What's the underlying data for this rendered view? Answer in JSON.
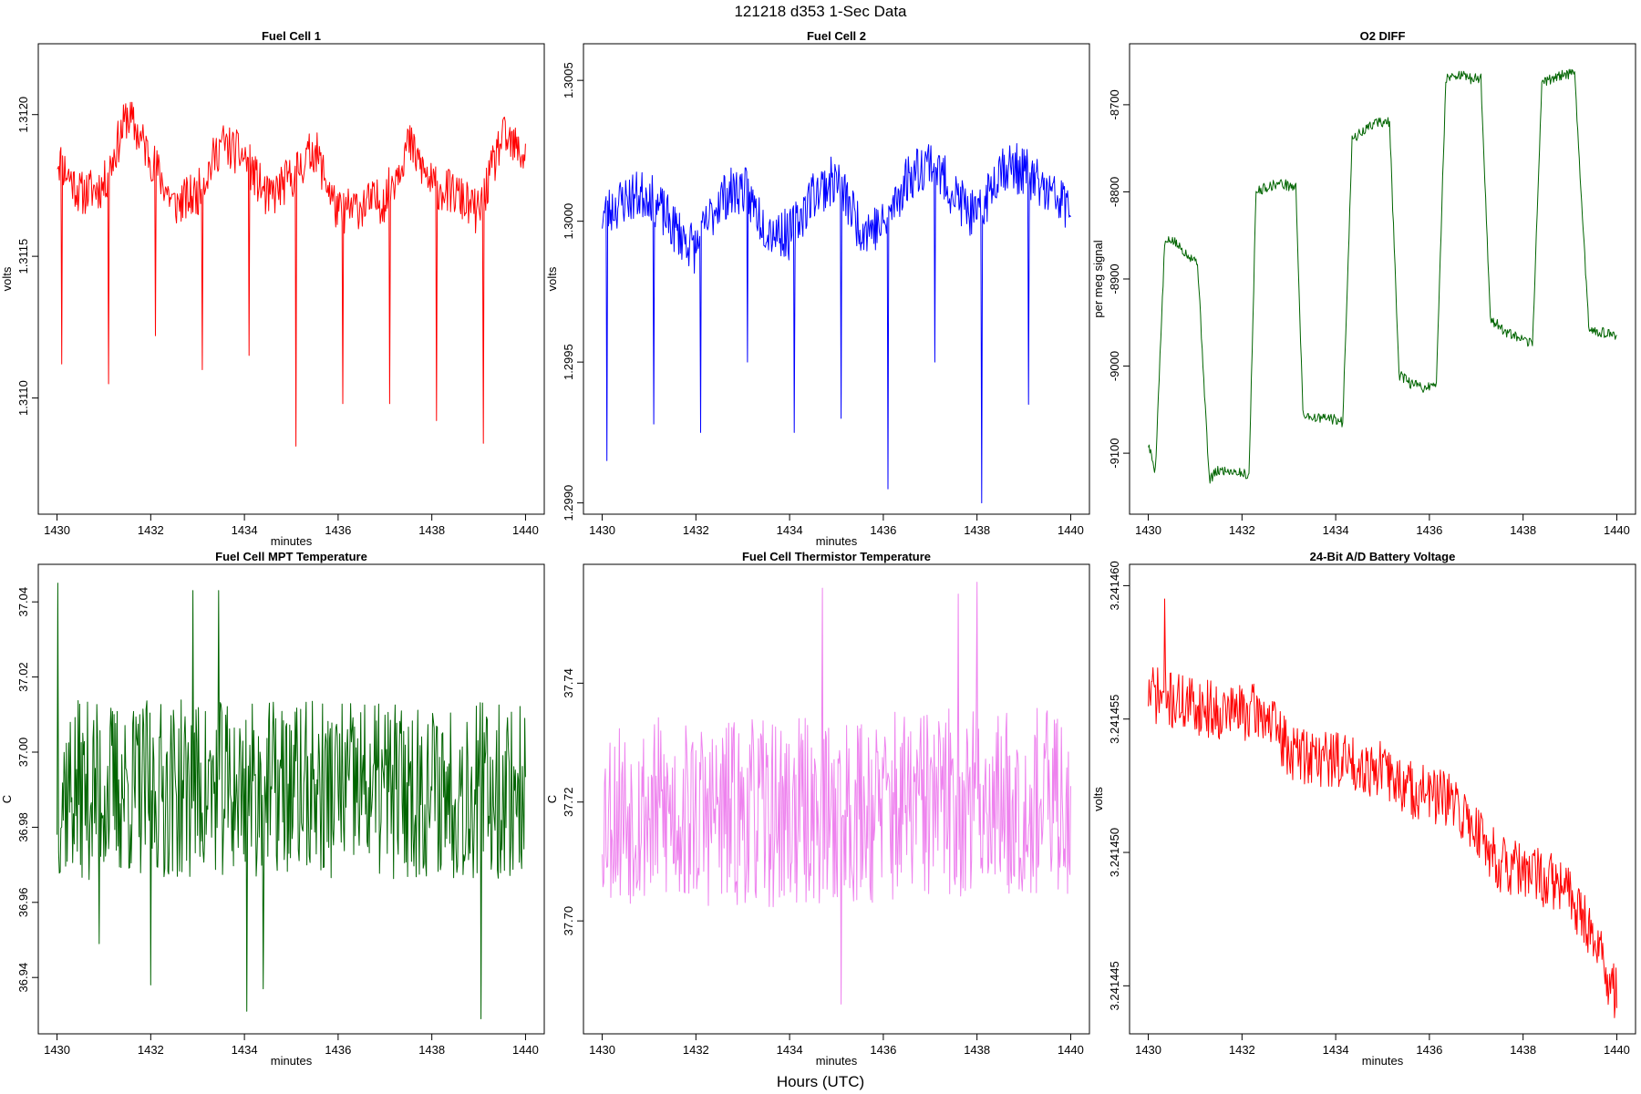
{
  "title": "121218   d353   1-Sec Data",
  "footer_label": "Hours (UTC)",
  "chart_data": [
    {
      "type": "line",
      "title": "Fuel Cell 1",
      "xlabel": "minutes",
      "ylabel": "volts",
      "color": "#ff0000",
      "xlim": [
        1429.6,
        1440.4
      ],
      "ylim": [
        1.31059,
        1.31225
      ],
      "xticks": [
        "1430",
        "1432",
        "1434",
        "1436",
        "1438",
        "1440"
      ],
      "yticks": [
        "1.3110",
        "1.3115",
        "1.3120"
      ],
      "series": [
        {
          "name": "Fuel Cell 1",
          "x": [
            1430,
            1430.5,
            1431,
            1431.5,
            1432,
            1432.5,
            1433,
            1433.5,
            1434,
            1434.5,
            1435,
            1435.5,
            1436,
            1436.5,
            1437,
            1437.5,
            1438,
            1438.5,
            1439,
            1439.5,
            1440
          ],
          "y": [
            1.31185,
            1.31172,
            1.31175,
            1.312,
            1.31185,
            1.31168,
            1.31172,
            1.3119,
            1.31185,
            1.3117,
            1.31178,
            1.31188,
            1.31165,
            1.31168,
            1.3117,
            1.3119,
            1.31175,
            1.31172,
            1.31165,
            1.31192,
            1.31185
          ],
          "spikes": [
            {
              "x": 1430.1,
              "y": 1.31112
            },
            {
              "x": 1431.1,
              "y": 1.31105
            },
            {
              "x": 1432.1,
              "y": 1.31122
            },
            {
              "x": 1433.1,
              "y": 1.3111
            },
            {
              "x": 1434.1,
              "y": 1.31115
            },
            {
              "x": 1435.1,
              "y": 1.31083
            },
            {
              "x": 1436.1,
              "y": 1.31098
            },
            {
              "x": 1437.1,
              "y": 1.31098
            },
            {
              "x": 1438.1,
              "y": 1.31092
            },
            {
              "x": 1439.1,
              "y": 1.31084
            }
          ],
          "noise": 8e-05,
          "seed": 11
        }
      ]
    },
    {
      "type": "line",
      "title": "Fuel Cell 2",
      "xlabel": "minutes",
      "ylabel": "volts",
      "color": "#0000ff",
      "xlim": [
        1429.6,
        1440.4
      ],
      "ylim": [
        1.29896,
        1.30063
      ],
      "xticks": [
        "1430",
        "1432",
        "1434",
        "1436",
        "1438",
        "1440"
      ],
      "yticks": [
        "1.2990",
        "1.2995",
        "1.3000",
        "1.3005"
      ],
      "series": [
        {
          "name": "Fuel Cell 2",
          "x": [
            1430,
            1430.5,
            1431,
            1431.5,
            1432,
            1432.5,
            1433,
            1433.5,
            1434,
            1434.5,
            1435,
            1435.5,
            1436,
            1436.5,
            1437,
            1437.5,
            1438,
            1438.5,
            1439,
            1439.5,
            1440
          ],
          "y": [
            1.30002,
            1.30008,
            1.3001,
            1.29998,
            1.2999,
            1.30008,
            1.30012,
            1.29998,
            1.29995,
            1.3001,
            1.30015,
            1.29998,
            1.29998,
            1.30015,
            1.30022,
            1.3001,
            1.3,
            1.3002,
            1.30018,
            1.3001,
            1.30005
          ],
          "spikes": [
            {
              "x": 1430.1,
              "y": 1.29915
            },
            {
              "x": 1431.1,
              "y": 1.29928
            },
            {
              "x": 1432.1,
              "y": 1.29925
            },
            {
              "x": 1433.1,
              "y": 1.2995
            },
            {
              "x": 1434.1,
              "y": 1.29925
            },
            {
              "x": 1435.1,
              "y": 1.2993
            },
            {
              "x": 1436.1,
              "y": 1.29905
            },
            {
              "x": 1437.1,
              "y": 1.2995
            },
            {
              "x": 1438.1,
              "y": 1.299
            },
            {
              "x": 1439.1,
              "y": 1.29935
            }
          ],
          "noise": 9e-05,
          "seed": 23
        }
      ]
    },
    {
      "type": "line",
      "title": "O2 DIFF",
      "xlabel": "",
      "ylabel": "per meg signal",
      "color": "#006400",
      "xlim": [
        1429.6,
        1440.4
      ],
      "ylim": [
        -9170,
        -8630
      ],
      "xticks": [
        "1430",
        "1432",
        "1434",
        "1436",
        "1438",
        "1440"
      ],
      "yticks": [
        "-9100",
        "-9000",
        "-8900",
        "-8800",
        "-8700"
      ],
      "series": [
        {
          "name": "O2 DIFF",
          "x": [
            1430.0,
            1430.15,
            1430.35,
            1430.5,
            1430.8,
            1431.05,
            1431.3,
            1431.5,
            1431.8,
            1432.15,
            1432.3,
            1432.5,
            1432.8,
            1433.15,
            1433.3,
            1433.6,
            1433.9,
            1434.15,
            1434.35,
            1434.6,
            1434.85,
            1435.15,
            1435.35,
            1435.6,
            1435.9,
            1436.15,
            1436.35,
            1436.6,
            1436.85,
            1437.1,
            1437.3,
            1437.6,
            1437.95,
            1438.2,
            1438.4,
            1438.6,
            1438.9,
            1439.1,
            1439.4,
            1439.6,
            1439.9,
            1440.0
          ],
          "y": [
            -9090,
            -9120,
            -8860,
            -8855,
            -8870,
            -8880,
            -9130,
            -9120,
            -9120,
            -9125,
            -8800,
            -8795,
            -8790,
            -8795,
            -9055,
            -9060,
            -9060,
            -9065,
            -8740,
            -8730,
            -8720,
            -8720,
            -9010,
            -9020,
            -9025,
            -9020,
            -8670,
            -8665,
            -8670,
            -8670,
            -8945,
            -8960,
            -8970,
            -8975,
            -8675,
            -8670,
            -8665,
            -8665,
            -8955,
            -8960,
            -8965,
            -8965
          ],
          "noise": 6,
          "seed": 5
        }
      ]
    },
    {
      "type": "line",
      "title": "Fuel Cell MPT Temperature",
      "xlabel": "minutes",
      "ylabel": "C",
      "color": "#006400",
      "xlim": [
        1429.6,
        1440.4
      ],
      "ylim": [
        36.925,
        37.05
      ],
      "xticks": [
        "1430",
        "1432",
        "1434",
        "1436",
        "1438",
        "1440"
      ],
      "yticks": [
        "36.94",
        "36.96",
        "36.98",
        "37.00",
        "37.02",
        "37.04"
      ],
      "series": [
        {
          "name": "Fuel Cell MPT Temperature",
          "x": [
            1430,
            1432,
            1434,
            1436,
            1438,
            1440
          ],
          "y": [
            36.99,
            36.99,
            36.99,
            36.99,
            36.99,
            36.99
          ],
          "spikes": [
            {
              "x": 1430.02,
              "y": 37.045
            },
            {
              "x": 1432.0,
              "y": 36.938
            },
            {
              "x": 1432.9,
              "y": 37.043
            },
            {
              "x": 1433.45,
              "y": 37.043
            },
            {
              "x": 1434.05,
              "y": 36.931
            },
            {
              "x": 1434.4,
              "y": 36.937
            },
            {
              "x": 1439.05,
              "y": 36.929
            },
            {
              "x": 1430.9,
              "y": 36.949
            }
          ],
          "noise": 0.024,
          "seed": 37
        }
      ]
    },
    {
      "type": "line",
      "title": "Fuel Cell Thermistor Temperature",
      "xlabel": "minutes",
      "ylabel": "C",
      "color": "#ee82ee",
      "xlim": [
        1429.6,
        1440.4
      ],
      "ylim": [
        37.681,
        37.76
      ],
      "xticks": [
        "1430",
        "1432",
        "1434",
        "1436",
        "1438",
        "1440"
      ],
      "yticks": [
        "37.70",
        "37.72",
        "37.74"
      ],
      "series": [
        {
          "name": "Fuel Cell Thermistor Temperature",
          "x": [
            1430,
            1432,
            1434,
            1436,
            1438,
            1440
          ],
          "y": [
            37.719,
            37.718,
            37.718,
            37.719,
            37.72,
            37.72
          ],
          "spikes": [
            {
              "x": 1434.7,
              "y": 37.756
            },
            {
              "x": 1435.1,
              "y": 37.686
            },
            {
              "x": 1438.0,
              "y": 37.757
            },
            {
              "x": 1437.6,
              "y": 37.755
            }
          ],
          "noise": 0.016,
          "seed": 53
        }
      ]
    },
    {
      "type": "line",
      "title": "24-Bit A/D Battery Voltage",
      "xlabel": "minutes",
      "ylabel": "volts",
      "color": "#ff0000",
      "xlim": [
        1429.6,
        1440.4
      ],
      "ylim": [
        3.2414432,
        3.2414608
      ],
      "xticks": [
        "1430",
        "1432",
        "1434",
        "1436",
        "1438",
        "1440"
      ],
      "yticks": [
        "3.241445",
        "3.241450",
        "3.241455",
        "3.241460"
      ],
      "series": [
        {
          "name": "24-Bit A/D Battery Voltage",
          "x": [
            1430,
            1430.5,
            1431,
            1431.5,
            1432,
            1432.5,
            1433,
            1433.5,
            1434,
            1434.5,
            1435,
            1435.5,
            1436,
            1436.5,
            1437,
            1437.5,
            1438,
            1438.5,
            1439,
            1439.5,
            1440
          ],
          "y": [
            3.241456,
            3.2414557,
            3.2414555,
            3.2414553,
            3.2414553,
            3.2414552,
            3.2414538,
            3.2414536,
            3.2414535,
            3.2414533,
            3.2414531,
            3.2414524,
            3.2414522,
            3.2414518,
            3.2414509,
            3.2414496,
            3.2414492,
            3.241449,
            3.2414485,
            3.2414469,
            3.2414445
          ],
          "spikes": [
            {
              "x": 1430.35,
              "y": 3.2414595
            },
            {
              "x": 1439.95,
              "y": 3.2414438
            }
          ],
          "noise": 1.1e-06,
          "seed": 71
        }
      ]
    }
  ]
}
